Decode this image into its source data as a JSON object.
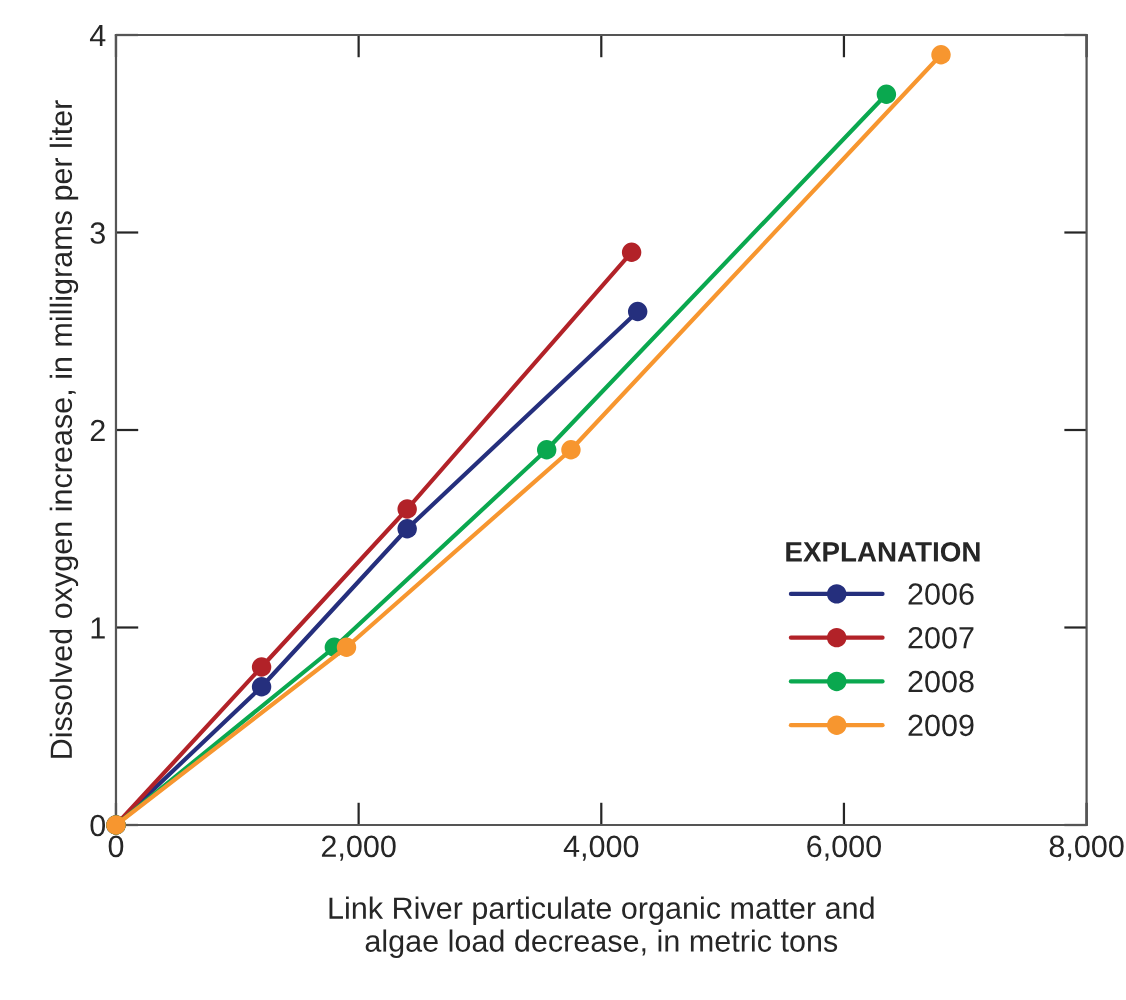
{
  "chart_data": {
    "type": "line",
    "xlabel": "Link River particulate organic matter and\nalgae load decrease, in metric tons",
    "ylabel": "Dissolved oxygen increase, in milligrams per liter",
    "legend_title": "EXPLANATION",
    "series": [
      {
        "name": "2006",
        "color": "#252f7d",
        "x": [
          0,
          1200,
          2400,
          4300
        ],
        "values": [
          0,
          0.7,
          1.5,
          2.6
        ]
      },
      {
        "name": "2007",
        "color": "#b22228",
        "x": [
          0,
          1200,
          2400,
          4250
        ],
        "values": [
          0,
          0.8,
          1.6,
          2.9
        ]
      },
      {
        "name": "2008",
        "color": "#0aa84f",
        "x": [
          0,
          1800,
          3550,
          6350
        ],
        "values": [
          0,
          0.9,
          1.9,
          3.7
        ]
      },
      {
        "name": "2009",
        "color": "#f7962f",
        "x": [
          0,
          1900,
          3750,
          6800
        ],
        "values": [
          0,
          0.9,
          1.9,
          3.9
        ]
      }
    ],
    "xlim": [
      0,
      8000
    ],
    "ylim": [
      0,
      4
    ],
    "xticks": [
      {
        "value": 0,
        "label": "0"
      },
      {
        "value": 2000,
        "label": "2,000"
      },
      {
        "value": 4000,
        "label": "4,000"
      },
      {
        "value": 6000,
        "label": "6,000"
      },
      {
        "value": 8000,
        "label": "8,000"
      }
    ],
    "yticks": [
      0,
      1,
      2,
      3,
      4
    ],
    "marker": "circle",
    "line_style": "solid",
    "grid": false,
    "legend": "bottom right"
  }
}
